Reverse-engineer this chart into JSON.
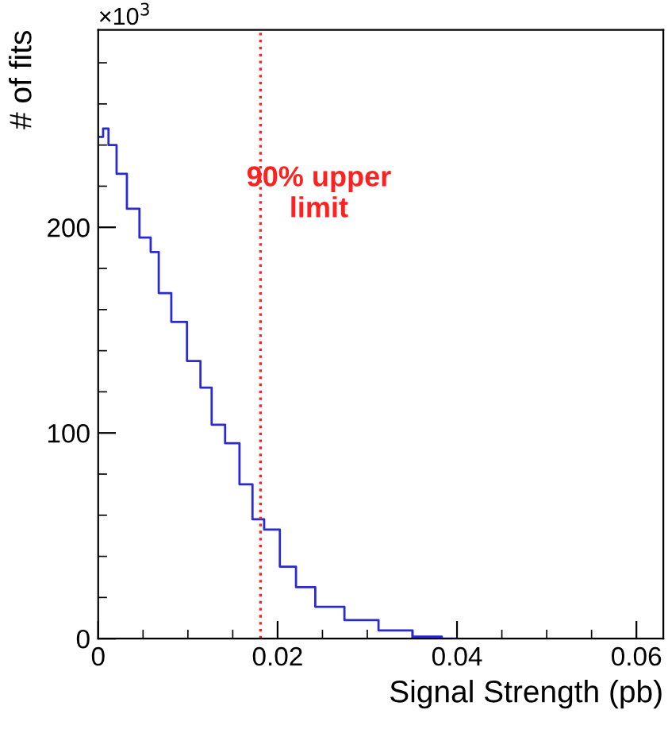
{
  "chart_data": {
    "type": "step",
    "xlabel": "Signal Strength (pb)",
    "ylabel": "# of fits",
    "annotations": [
      "×10$^{3}$"
    ],
    "series": [
      {
        "color": "#2a2ad0",
        "x": [
          0.0002,
          0.0009,
          0.0014,
          0.0027,
          0.0037,
          0.0055,
          0.0062,
          0.0073,
          0.009,
          0.0108,
          0.012,
          0.0133,
          0.015,
          0.0165,
          0.0179,
          0.0191,
          0.0214,
          0.0227,
          0.0257,
          0.0292,
          0.0333,
          0.0368,
          0.0398
        ],
        "values": [
          244,
          248,
          240,
          226,
          209,
          195,
          188,
          168,
          154,
          135,
          122,
          104,
          95,
          75,
          58,
          53,
          35,
          25,
          15.5,
          9,
          4,
          1,
          0
        ]
      }
    ],
    "xlim": [
      0,
      0.063
    ],
    "xticks": [
      0,
      0.02,
      0.04,
      0.06
    ],
    "ylim": [
      0,
      296
    ],
    "yticks": [
      0,
      100,
      200
    ],
    "ref_lines": [
      {
        "axis": "x",
        "value": 0.0181,
        "label": "90% upper\nlimit",
        "color": "#ff2020",
        "line_style": "dotted"
      }
    ],
    "grid": false,
    "legend": false
  }
}
